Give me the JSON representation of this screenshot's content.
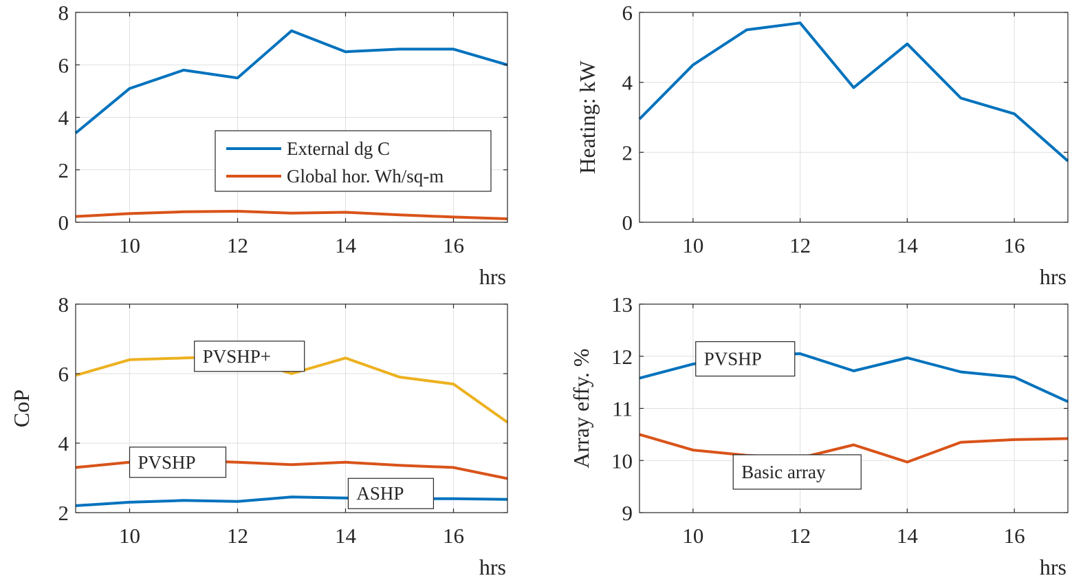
{
  "figure": {
    "charts": [
      {
        "name": "external-conditions",
        "type": "line",
        "xlabel": "hrs",
        "ylabel": "",
        "xlim": [
          9,
          17
        ],
        "ylim": [
          0,
          8
        ],
        "xticks": [
          10,
          12,
          14,
          16
        ],
        "yticks": [
          0,
          2,
          4,
          6,
          8
        ],
        "grid": true,
        "legend": "center-right",
        "series": [
          {
            "name": "External dg C",
            "color": "#0072BD",
            "x": [
              9,
              10,
              11,
              12,
              13,
              14,
              15,
              16,
              17
            ],
            "y": [
              3.4,
              5.1,
              5.8,
              5.5,
              7.3,
              6.5,
              6.6,
              6.6,
              6.0
            ]
          },
          {
            "name": "Global hor. Wh/sq-m",
            "color": "#D95319",
            "x": [
              9,
              10,
              11,
              12,
              13,
              14,
              15,
              16,
              17
            ],
            "y": [
              0.22,
              0.33,
              0.4,
              0.42,
              0.35,
              0.38,
              0.28,
              0.2,
              0.13
            ]
          }
        ],
        "annotations": []
      },
      {
        "name": "heating",
        "type": "line",
        "xlabel": "hrs",
        "ylabel": "Heating: kW",
        "xlim": [
          9,
          17
        ],
        "ylim": [
          0,
          6
        ],
        "xticks": [
          10,
          12,
          14,
          16
        ],
        "yticks": [
          0,
          2,
          4,
          6
        ],
        "grid": true,
        "legend": "none",
        "series": [
          {
            "name": "",
            "color": "#0072BD",
            "x": [
              9,
              10,
              11,
              12,
              13,
              14,
              15,
              16,
              17
            ],
            "y": [
              2.95,
              4.5,
              5.5,
              5.7,
              3.85,
              5.1,
              3.55,
              3.1,
              1.75
            ]
          }
        ],
        "annotations": []
      },
      {
        "name": "cop",
        "type": "line",
        "xlabel": "hrs",
        "ylabel": "CoP",
        "xlim": [
          9,
          17
        ],
        "ylim": [
          2,
          8
        ],
        "xticks": [
          10,
          12,
          14,
          16
        ],
        "yticks": [
          2,
          4,
          6,
          8
        ],
        "grid": true,
        "legend": "none",
        "series": [
          {
            "name": "PVSHP+",
            "color": "#EDB120",
            "x": [
              9,
              10,
              11,
              12,
              13,
              14,
              15,
              16,
              17
            ],
            "y": [
              5.95,
              6.4,
              6.45,
              6.5,
              6.0,
              6.45,
              5.9,
              5.7,
              4.6
            ]
          },
          {
            "name": "PVSHP",
            "color": "#D95319",
            "x": [
              9,
              10,
              11,
              12,
              13,
              14,
              15,
              16,
              17
            ],
            "y": [
              3.3,
              3.45,
              3.5,
              3.45,
              3.38,
              3.45,
              3.36,
              3.3,
              2.98
            ]
          },
          {
            "name": "ASHP",
            "color": "#0072BD",
            "x": [
              9,
              10,
              11,
              12,
              13,
              14,
              15,
              16,
              17
            ],
            "y": [
              2.2,
              2.3,
              2.35,
              2.32,
              2.45,
              2.42,
              2.4,
              2.4,
              2.38
            ]
          }
        ],
        "annotations": [
          {
            "text": "PVSHP+",
            "at": [
              11.2,
              6.5
            ]
          },
          {
            "text": "PVSHP",
            "at": [
              10.0,
              3.45
            ]
          },
          {
            "text": "ASHP",
            "at": [
              14.05,
              2.55
            ]
          }
        ]
      },
      {
        "name": "array-efficiency",
        "type": "line",
        "xlabel": "hrs",
        "ylabel": "Array effy. %",
        "xlim": [
          9,
          17
        ],
        "ylim": [
          9,
          13
        ],
        "xticks": [
          10,
          12,
          14,
          16
        ],
        "yticks": [
          9,
          10,
          11,
          12,
          13
        ],
        "grid": true,
        "legend": "none",
        "series": [
          {
            "name": "PVSHP",
            "color": "#0072BD",
            "x": [
              9,
              10,
              11,
              12,
              13,
              14,
              15,
              16,
              17
            ],
            "y": [
              11.58,
              11.85,
              12.02,
              12.05,
              11.72,
              11.97,
              11.7,
              11.6,
              11.13
            ]
          },
          {
            "name": "Basic array",
            "color": "#D95319",
            "x": [
              9,
              10,
              11,
              12,
              13,
              14,
              15,
              16,
              17
            ],
            "y": [
              10.5,
              10.2,
              10.1,
              10.05,
              10.3,
              9.97,
              10.35,
              10.4,
              10.42
            ]
          }
        ],
        "annotations": [
          {
            "text": "PVSHP",
            "at": [
              10.05,
              11.95
            ]
          },
          {
            "text": "Basic array",
            "at": [
              10.75,
              9.78
            ]
          }
        ]
      }
    ]
  }
}
